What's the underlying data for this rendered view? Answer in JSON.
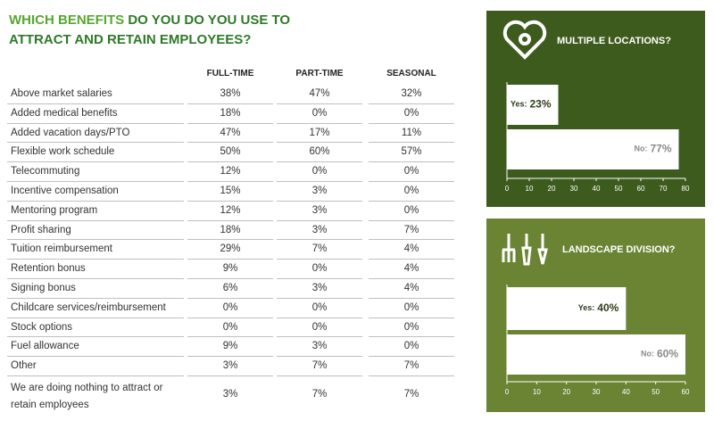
{
  "title": [
    "WHICH BENEFITS",
    "DO YOU DO YOU USE TO ATTRACT AND RETAIN EMPLOYEES?"
  ],
  "table": {
    "columns": [
      "FULL-TIME",
      "PART-TIME",
      "SEASONAL"
    ],
    "rows": [
      {
        "label": "Above market salaries",
        "values": [
          "38%",
          "47%",
          "32%"
        ]
      },
      {
        "label": "Added medical benefits",
        "values": [
          "18%",
          "0%",
          "0%"
        ]
      },
      {
        "label": "Added vacation days/PTO",
        "values": [
          "47%",
          "17%",
          "11%"
        ]
      },
      {
        "label": "Flexible work schedule",
        "values": [
          "50%",
          "60%",
          "57%"
        ]
      },
      {
        "label": "Telecommuting",
        "values": [
          "12%",
          "0%",
          "0%"
        ]
      },
      {
        "label": "Incentive compensation",
        "values": [
          "15%",
          "3%",
          "0%"
        ]
      },
      {
        "label": "Mentoring program",
        "values": [
          "12%",
          "3%",
          "0%"
        ]
      },
      {
        "label": "Profit sharing",
        "values": [
          "18%",
          "3%",
          "7%"
        ]
      },
      {
        "label": "Tuition reimbursement",
        "values": [
          "29%",
          "7%",
          "4%"
        ]
      },
      {
        "label": "Retention bonus",
        "values": [
          "9%",
          "0%",
          "4%"
        ]
      },
      {
        "label": "Signing bonus",
        "values": [
          "6%",
          "3%",
          "4%"
        ]
      },
      {
        "label": "Childcare services/reimbursement",
        "values": [
          "0%",
          "0%",
          "0%"
        ]
      },
      {
        "label": "Stock options",
        "values": [
          "0%",
          "0%",
          "0%"
        ]
      },
      {
        "label": "Fuel allowance",
        "values": [
          "9%",
          "3%",
          "0%"
        ]
      },
      {
        "label": "Other",
        "values": [
          "3%",
          "7%",
          "7%"
        ]
      },
      {
        "label": "We are doing nothing to attract or retain employees",
        "values": [
          "3%",
          "7%",
          "7%"
        ]
      }
    ]
  },
  "chart_data": [
    {
      "type": "bar",
      "orientation": "horizontal",
      "title": "MULTIPLE LOCATIONS?",
      "background": "#3e5b1e",
      "categories": [
        "Yes:",
        "No:"
      ],
      "values": [
        23,
        77
      ],
      "value_labels": [
        "23%",
        "77%"
      ],
      "color": "#ffffff",
      "xlim": [
        0,
        80
      ],
      "xticks": [
        0,
        10,
        20,
        30,
        40,
        50,
        60,
        70,
        80
      ]
    },
    {
      "type": "bar",
      "orientation": "horizontal",
      "title": "LANDSCAPE DIVISION?",
      "background": "#6b8434",
      "categories": [
        "Yes:",
        "No:"
      ],
      "values": [
        40,
        60
      ],
      "value_labels": [
        "40%",
        "60%"
      ],
      "color": "#ffffff",
      "xlim": [
        0,
        60
      ],
      "xticks": [
        0,
        10,
        20,
        30,
        40,
        50,
        60
      ]
    }
  ]
}
